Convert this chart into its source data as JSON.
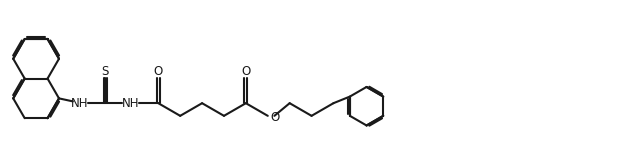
{
  "bg": "#ffffff",
  "lc": "#1a1a1a",
  "lw": 1.5,
  "fs": 8.5,
  "fw": 6.32,
  "fh": 1.48,
  "dpi": 100,
  "xlim": [
    0,
    10.5
  ],
  "ylim": [
    0,
    2.45
  ]
}
